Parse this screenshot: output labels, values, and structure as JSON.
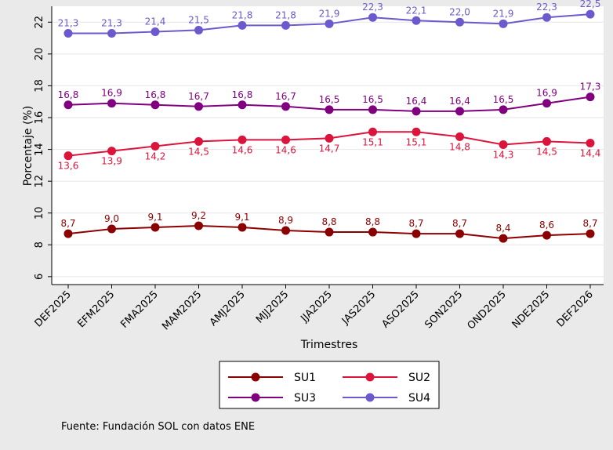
{
  "chart_data": {
    "type": "line",
    "title": "",
    "xlabel": "Trimestres",
    "ylabel": "Porcentaje (%)",
    "ylim": [
      5.5,
      23
    ],
    "yticks": [
      6,
      8,
      10,
      12,
      14,
      16,
      18,
      20,
      22
    ],
    "grid": "horizontal",
    "legend_position": "bottom",
    "categories": [
      "DEF2025",
      "EFM2025",
      "FMA2025",
      "MAM2025",
      "AMJ2025",
      "MJJ2025",
      "JJA2025",
      "JAS2025",
      "ASO2025",
      "SON2025",
      "OND2025",
      "NDE2025",
      "DEF2026"
    ],
    "series": [
      {
        "name": "SU1",
        "color": "#8b0000",
        "values": [
          8.7,
          9.0,
          9.1,
          9.2,
          9.1,
          8.9,
          8.8,
          8.8,
          8.7,
          8.7,
          8.4,
          8.6,
          8.7
        ],
        "labels": [
          "8,7",
          "9,0",
          "9,1",
          "9,2",
          "9,1",
          "8,9",
          "8,8",
          "8,8",
          "8,7",
          "8,7",
          "8,4",
          "8,6",
          "8,7"
        ]
      },
      {
        "name": "SU2",
        "color": "#dc143c",
        "values": [
          13.6,
          13.9,
          14.2,
          14.5,
          14.6,
          14.6,
          14.7,
          15.1,
          15.1,
          14.8,
          14.3,
          14.5,
          14.4
        ],
        "labels": [
          "13,6",
          "13,9",
          "14,2",
          "14,5",
          "14,6",
          "14,6",
          "14,7",
          "15,1",
          "15,1",
          "14,8",
          "14,3",
          "14,5",
          "14,4"
        ]
      },
      {
        "name": "SU3",
        "color": "#800080",
        "values": [
          16.8,
          16.9,
          16.8,
          16.7,
          16.8,
          16.7,
          16.5,
          16.5,
          16.4,
          16.4,
          16.5,
          16.9,
          17.3
        ],
        "labels": [
          "16,8",
          "16,9",
          "16,8",
          "16,7",
          "16,8",
          "16,7",
          "16,5",
          "16,5",
          "16,4",
          "16,4",
          "16,5",
          "16,9",
          "17,3"
        ]
      },
      {
        "name": "SU4",
        "color": "#6a5acd",
        "values": [
          21.3,
          21.3,
          21.4,
          21.5,
          21.8,
          21.8,
          21.9,
          22.3,
          22.1,
          22.0,
          21.9,
          22.3,
          22.5
        ],
        "labels": [
          "21,3",
          "21,3",
          "21,4",
          "21,5",
          "21,8",
          "21,8",
          "21,9",
          "22,3",
          "22,1",
          "22,0",
          "21,9",
          "22,3",
          "22,5"
        ]
      }
    ],
    "note": "Fuente: Fundación SOL con datos ENE"
  }
}
